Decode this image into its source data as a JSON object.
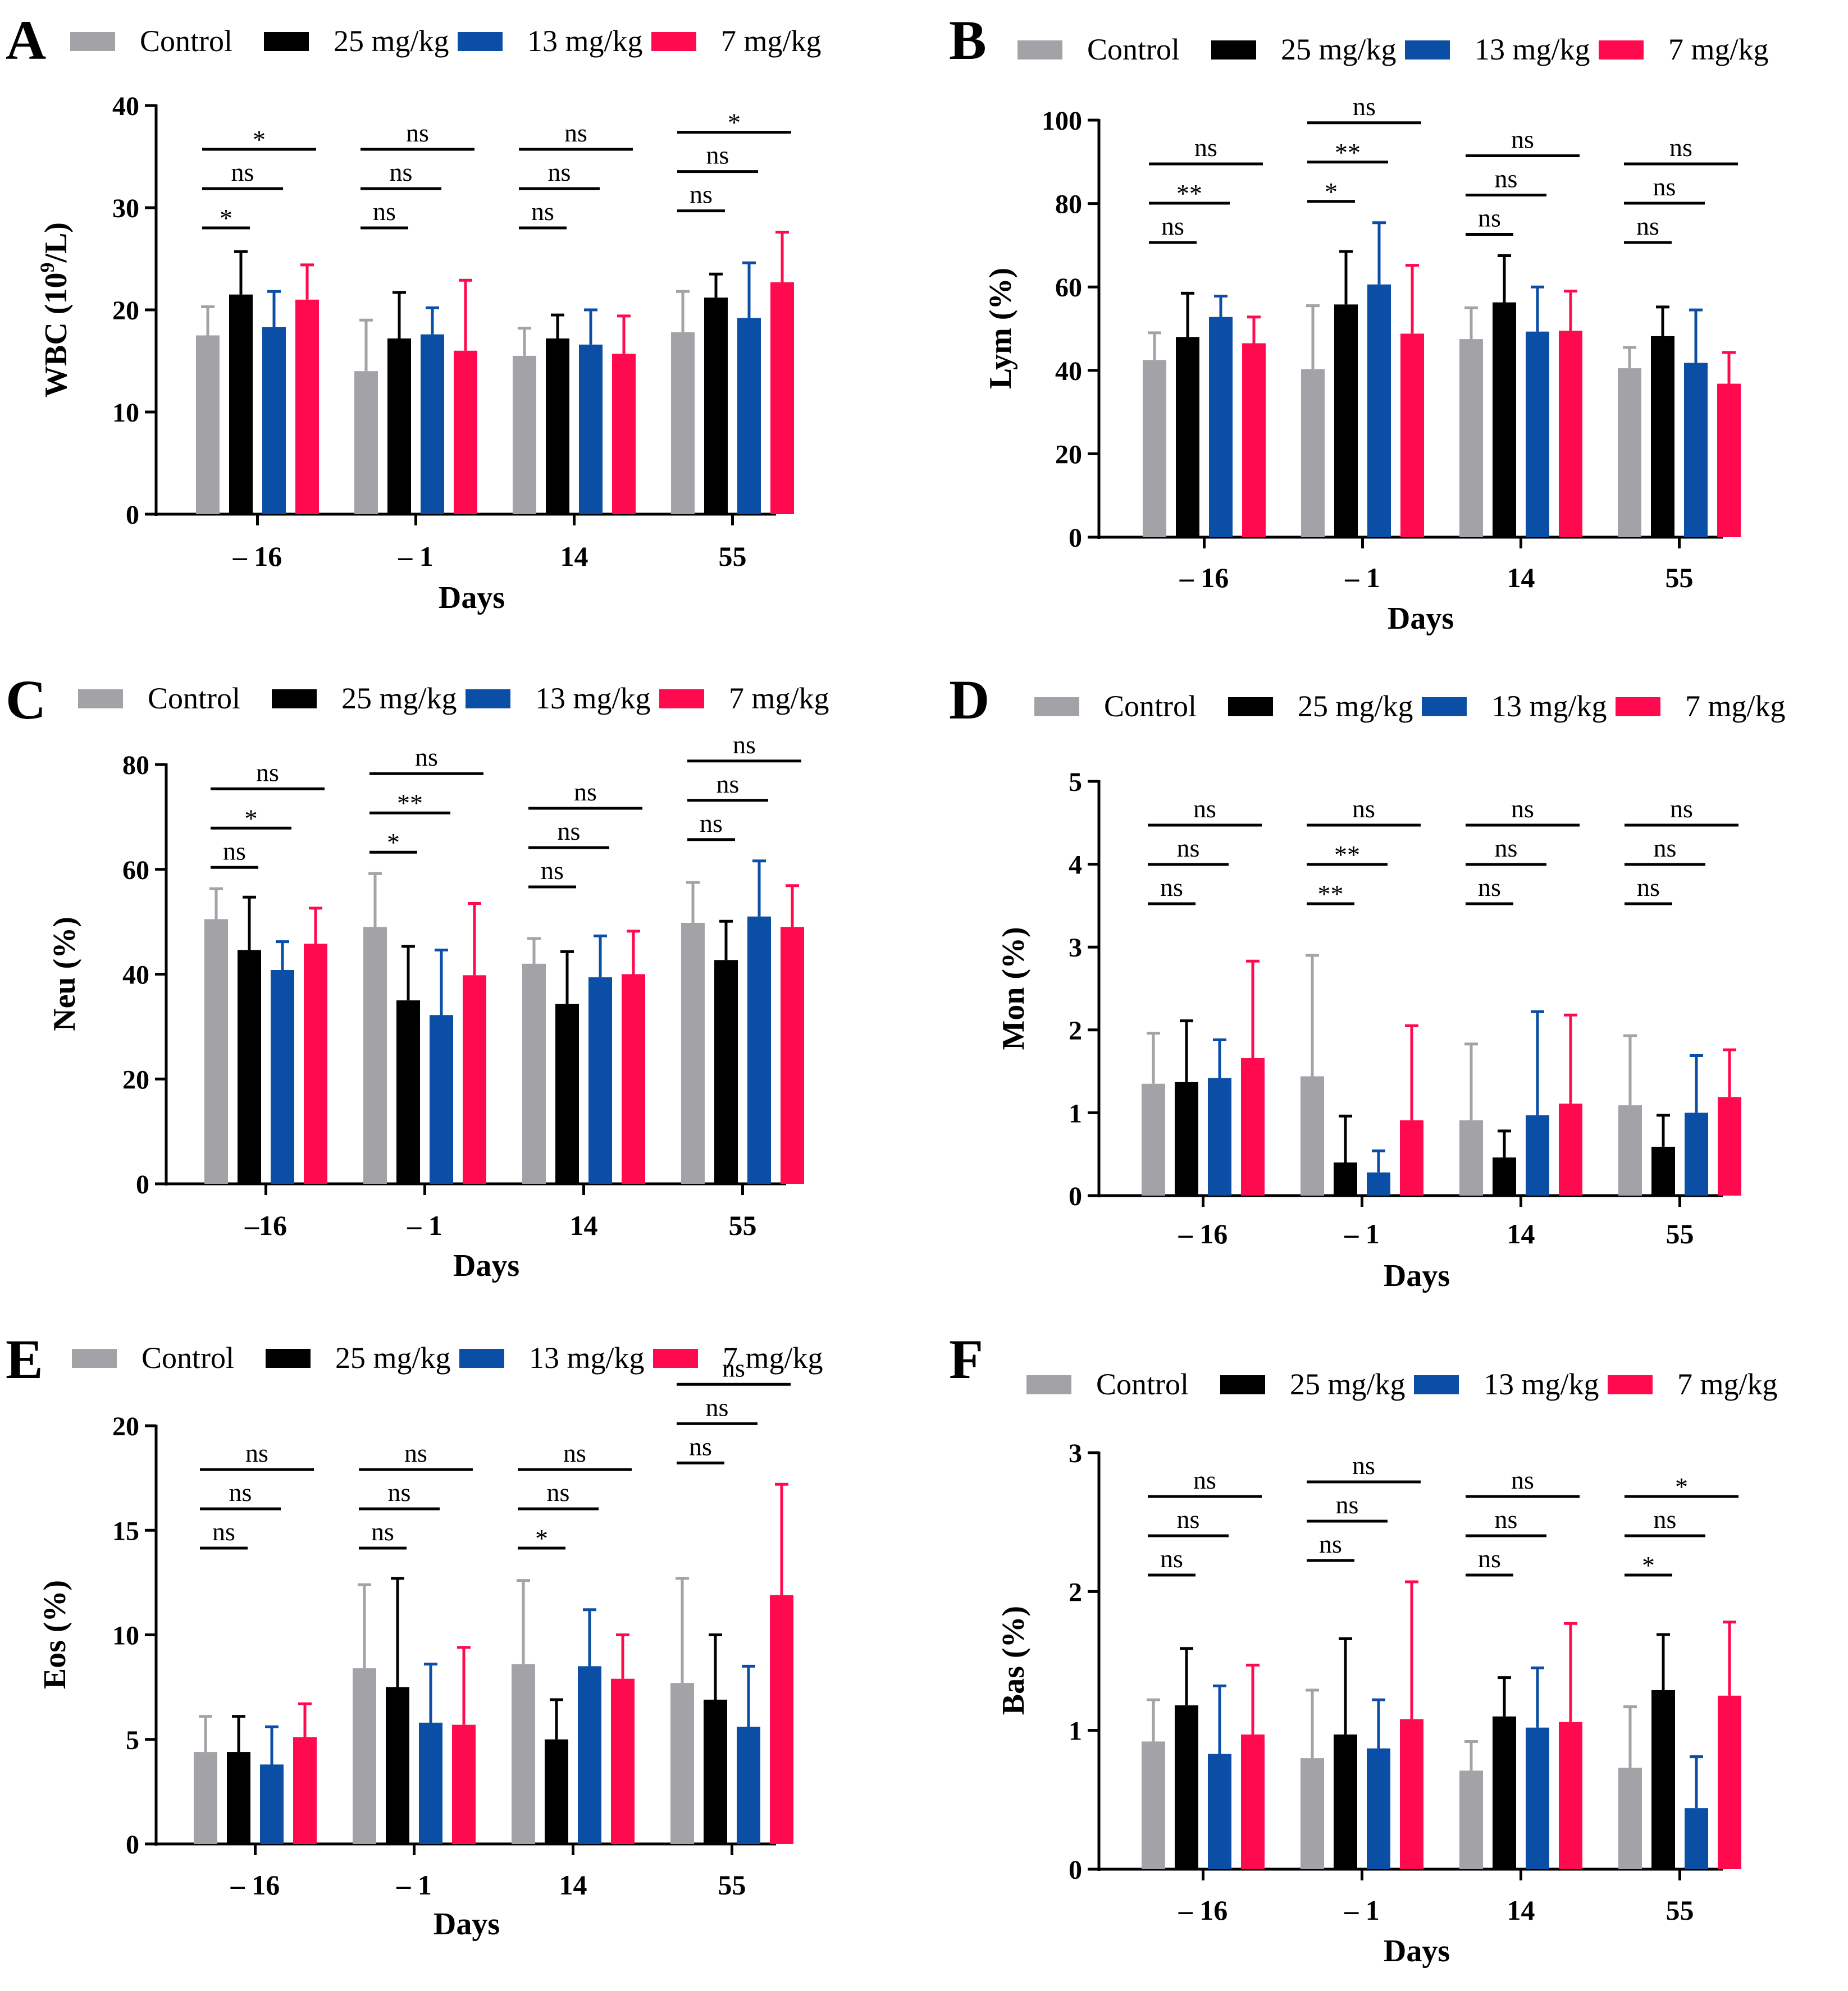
{
  "series_names": [
    "Control",
    "25 mg/kg",
    "13 mg/kg",
    "7 mg/kg"
  ],
  "series_colors": [
    "#a3a3a7",
    "#000000",
    "#0a4ea6",
    "#ff0a4e"
  ],
  "chart_data": [
    {
      "panel": "A",
      "type": "bar",
      "title": "",
      "xlabel": "Days",
      "ylabel": "WBC (10",
      "ylabel_sup": "9",
      "ylabel_tail": "/L)",
      "ylim": [
        0,
        40
      ],
      "yticks": [
        "0",
        "10",
        "20",
        "30",
        "40"
      ],
      "legend_position": "top",
      "categories": [
        "– 16",
        "– 1",
        "14",
        "55"
      ],
      "series": [
        {
          "name": "Control",
          "values": [
            17.5,
            14.0,
            15.5,
            17.8
          ],
          "errors": [
            2.8,
            5.0,
            2.7,
            4.0
          ]
        },
        {
          "name": "25 mg/kg",
          "values": [
            21.5,
            17.2,
            17.2,
            21.2
          ],
          "errors": [
            4.2,
            4.5,
            2.3,
            2.3
          ]
        },
        {
          "name": "13 mg/kg",
          "values": [
            18.3,
            17.6,
            16.6,
            19.2
          ],
          "errors": [
            3.5,
            2.6,
            3.4,
            5.4
          ]
        },
        {
          "name": "7 mg/kg",
          "values": [
            21.0,
            16.0,
            15.7,
            22.7
          ],
          "errors": [
            3.4,
            6.9,
            3.7,
            4.9
          ]
        }
      ],
      "significance": [
        {
          "category": 0,
          "levels": [
            "*",
            "ns",
            "*"
          ]
        },
        {
          "category": 1,
          "levels": [
            "ns",
            "ns",
            "ns"
          ]
        },
        {
          "category": 2,
          "levels": [
            "ns",
            "ns",
            "ns"
          ]
        },
        {
          "category": 3,
          "levels": [
            "ns",
            "ns",
            "*"
          ]
        }
      ]
    },
    {
      "panel": "B",
      "type": "bar",
      "title": "",
      "xlabel": "Days",
      "ylabel": "Lym (%)",
      "ylim": [
        0,
        100
      ],
      "yticks": [
        "0",
        "20",
        "40",
        "60",
        "80",
        "100"
      ],
      "legend_position": "top",
      "categories": [
        "– 16",
        "– 1",
        "14",
        "55"
      ],
      "series": [
        {
          "name": "Control",
          "values": [
            42.5,
            40.3,
            47.5,
            40.5
          ],
          "errors": [
            6.5,
            15.2,
            7.5,
            5.0
          ]
        },
        {
          "name": "25 mg/kg",
          "values": [
            48.0,
            55.8,
            56.3,
            48.2
          ],
          "errors": [
            10.5,
            12.7,
            11.2,
            7.0
          ]
        },
        {
          "name": "13 mg/kg",
          "values": [
            52.8,
            60.6,
            49.3,
            41.8
          ],
          "errors": [
            5.0,
            14.8,
            10.7,
            12.7
          ]
        },
        {
          "name": "7 mg/kg",
          "values": [
            46.5,
            48.8,
            49.5,
            36.8
          ],
          "errors": [
            6.3,
            16.4,
            9.5,
            7.5
          ]
        }
      ],
      "significance": [
        {
          "category": 0,
          "levels": [
            "ns",
            "**",
            "ns"
          ]
        },
        {
          "category": 1,
          "levels": [
            "*",
            "**",
            "ns"
          ]
        },
        {
          "category": 2,
          "levels": [
            "ns",
            "ns",
            "ns"
          ]
        },
        {
          "category": 3,
          "levels": [
            "ns",
            "ns",
            "ns"
          ]
        }
      ]
    },
    {
      "panel": "C",
      "type": "bar",
      "title": "",
      "xlabel": "Days",
      "ylabel": "Neu (%)",
      "ylim": [
        0,
        80
      ],
      "yticks": [
        "0",
        "20",
        "40",
        "60",
        "80"
      ],
      "legend_position": "top",
      "categories": [
        "–16",
        "– 1",
        "14",
        "55"
      ],
      "series": [
        {
          "name": "Control",
          "values": [
            50.5,
            49.0,
            42.0,
            49.8
          ],
          "errors": [
            5.8,
            10.2,
            4.8,
            7.7
          ]
        },
        {
          "name": "25 mg/kg",
          "values": [
            44.6,
            35.0,
            34.3,
            42.7
          ],
          "errors": [
            10.1,
            10.3,
            10.0,
            7.4
          ]
        },
        {
          "name": "13 mg/kg",
          "values": [
            40.8,
            32.2,
            39.4,
            51.0
          ],
          "errors": [
            5.4,
            12.4,
            7.9,
            10.6
          ]
        },
        {
          "name": "7 mg/kg",
          "values": [
            45.8,
            39.8,
            40.0,
            49.0
          ],
          "errors": [
            6.8,
            13.7,
            8.2,
            7.9
          ]
        }
      ],
      "significance": [
        {
          "category": 0,
          "levels": [
            "ns",
            "*",
            "ns"
          ]
        },
        {
          "category": 1,
          "levels": [
            "*",
            "**",
            "ns"
          ]
        },
        {
          "category": 2,
          "levels": [
            "ns",
            "ns",
            "ns"
          ]
        },
        {
          "category": 3,
          "levels": [
            "ns",
            "ns",
            "ns"
          ]
        }
      ]
    },
    {
      "panel": "D",
      "type": "bar",
      "title": "",
      "xlabel": "Days",
      "ylabel": "Mon (%)",
      "ylim": [
        0,
        5
      ],
      "yticks": [
        "0",
        "1",
        "2",
        "3",
        "4",
        "5"
      ],
      "legend_position": "top",
      "categories": [
        "– 16",
        "– 1",
        "14",
        "55"
      ],
      "series": [
        {
          "name": "Control",
          "values": [
            1.35,
            1.44,
            0.91,
            1.09
          ],
          "errors": [
            0.61,
            1.46,
            0.92,
            0.84
          ]
        },
        {
          "name": "25 mg/kg",
          "values": [
            1.37,
            0.4,
            0.46,
            0.59
          ],
          "errors": [
            0.74,
            0.56,
            0.32,
            0.38
          ]
        },
        {
          "name": "13 mg/kg",
          "values": [
            1.42,
            0.28,
            0.97,
            1.0
          ],
          "errors": [
            0.46,
            0.26,
            1.25,
            0.69
          ]
        },
        {
          "name": "7 mg/kg",
          "values": [
            1.66,
            0.91,
            1.11,
            1.19
          ],
          "errors": [
            1.17,
            1.14,
            1.07,
            0.57
          ]
        }
      ],
      "significance": [
        {
          "category": 0,
          "levels": [
            "ns",
            "ns",
            "ns"
          ]
        },
        {
          "category": 1,
          "levels": [
            "**",
            "**",
            "ns"
          ]
        },
        {
          "category": 2,
          "levels": [
            "ns",
            "ns",
            "ns"
          ]
        },
        {
          "category": 3,
          "levels": [
            "ns",
            "ns",
            "ns"
          ]
        }
      ]
    },
    {
      "panel": "E",
      "type": "bar",
      "title": "",
      "xlabel": "Days",
      "ylabel": "Eos (%)",
      "ylim": [
        0,
        20
      ],
      "yticks": [
        "0",
        "5",
        "10",
        "15",
        "20"
      ],
      "legend_position": "top",
      "categories": [
        "– 16",
        "– 1",
        "14",
        "55"
      ],
      "series": [
        {
          "name": "Control",
          "values": [
            4.4,
            8.4,
            8.6,
            7.7
          ],
          "errors": [
            1.7,
            4.0,
            4.0,
            5.0
          ]
        },
        {
          "name": "25 mg/kg",
          "values": [
            4.4,
            7.5,
            5.0,
            6.9
          ],
          "errors": [
            1.7,
            5.2,
            1.9,
            3.1
          ]
        },
        {
          "name": "13 mg/kg",
          "values": [
            3.8,
            5.8,
            8.5,
            5.6
          ],
          "errors": [
            1.8,
            2.8,
            2.7,
            2.9
          ]
        },
        {
          "name": "7 mg/kg",
          "values": [
            5.1,
            5.7,
            7.9,
            11.9
          ],
          "errors": [
            1.6,
            3.7,
            2.1,
            5.3
          ]
        }
      ],
      "significance": [
        {
          "category": 0,
          "levels": [
            "ns",
            "ns",
            "ns"
          ]
        },
        {
          "category": 1,
          "levels": [
            "ns",
            "ns",
            "ns"
          ]
        },
        {
          "category": 2,
          "levels": [
            "*",
            "ns",
            "ns"
          ]
        },
        {
          "category": 3,
          "levels": [
            "ns",
            "ns",
            "ns"
          ]
        }
      ]
    },
    {
      "panel": "F",
      "type": "bar",
      "title": "",
      "xlabel": "Days",
      "ylabel": "Bas (%)",
      "ylim": [
        0,
        3
      ],
      "yticks": [
        "0",
        "1",
        "2",
        "3"
      ],
      "legend_position": "top",
      "categories": [
        "– 16",
        "– 1",
        "14",
        "55"
      ],
      "series": [
        {
          "name": "Control",
          "values": [
            0.92,
            0.8,
            0.71,
            0.73
          ],
          "errors": [
            0.3,
            0.49,
            0.21,
            0.44
          ]
        },
        {
          "name": "25 mg/kg",
          "values": [
            1.18,
            0.97,
            1.1,
            1.29
          ],
          "errors": [
            0.41,
            0.69,
            0.28,
            0.4
          ]
        },
        {
          "name": "13 mg/kg",
          "values": [
            0.83,
            0.87,
            1.02,
            0.44
          ],
          "errors": [
            0.49,
            0.35,
            0.43,
            0.37
          ]
        },
        {
          "name": "7 mg/kg",
          "values": [
            0.97,
            1.08,
            1.06,
            1.25
          ],
          "errors": [
            0.5,
            0.99,
            0.71,
            0.53
          ]
        }
      ],
      "significance": [
        {
          "category": 0,
          "levels": [
            "ns",
            "ns",
            "ns"
          ]
        },
        {
          "category": 1,
          "levels": [
            "ns",
            "ns",
            "ns"
          ]
        },
        {
          "category": 2,
          "levels": [
            "ns",
            "ns",
            "ns"
          ]
        },
        {
          "category": 3,
          "levels": [
            "*",
            "ns",
            "*"
          ]
        }
      ]
    }
  ]
}
